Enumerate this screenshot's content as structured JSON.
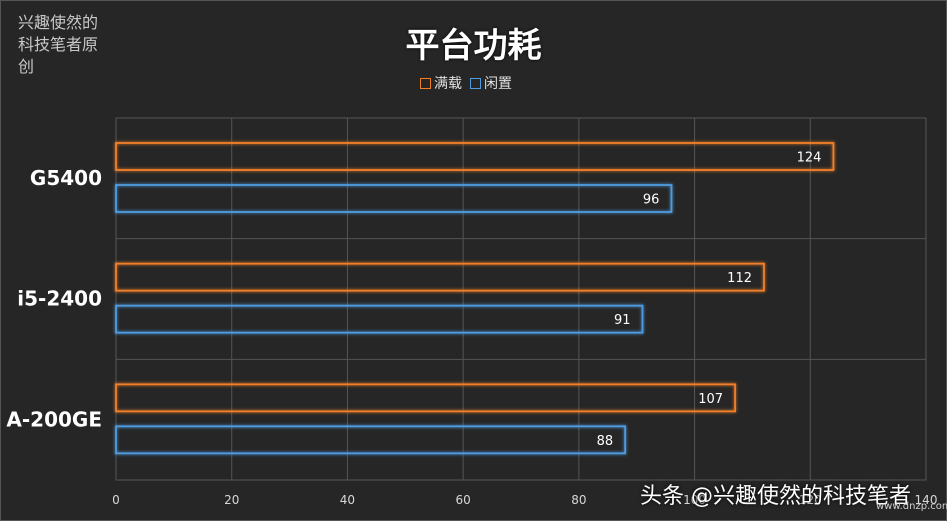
{
  "watermark_note": "兴趣使然的科技笔者原创",
  "bottom_banner": "头条 @兴趣使然的科技笔者",
  "bottom_url": "www.dnzp.com",
  "colors": {
    "full_load": "#f07f2a",
    "idle": "#4f9be0",
    "grid": "#555555",
    "background": "#262626"
  },
  "chart_data": {
    "type": "bar",
    "orientation": "horizontal",
    "title": "平台功耗",
    "categories": [
      "G5400",
      "i5-2400",
      "A-200GE"
    ],
    "series": [
      {
        "name": "满载",
        "values": [
          124,
          112,
          107
        ]
      },
      {
        "name": "闲置",
        "values": [
          96,
          91,
          88
        ]
      }
    ],
    "xlim": [
      0,
      140
    ],
    "xticks": [
      "0",
      "20",
      "40",
      "60",
      "80",
      "100",
      "120",
      "140"
    ],
    "grid": true,
    "legend": "top-center"
  }
}
